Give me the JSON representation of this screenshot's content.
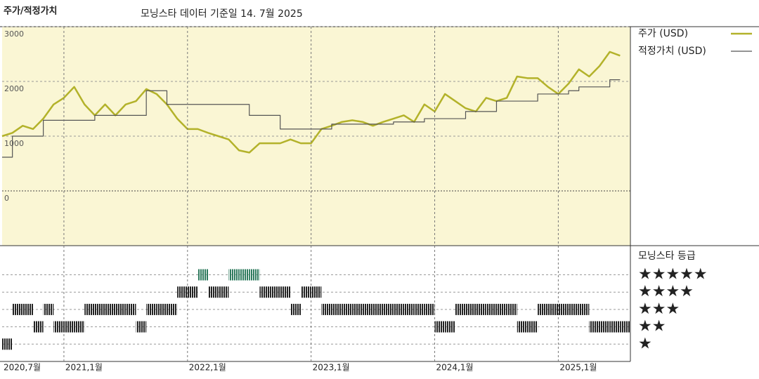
{
  "chart_data": [
    {
      "type": "line",
      "title": "주가/적정가치",
      "subtitle": "모닝스타 데이터 기준일 14. 7월 2025",
      "x": [
        "2020-07",
        "2020-08",
        "2020-09",
        "2020-10",
        "2020-11",
        "2020-12",
        "2021-01",
        "2021-02",
        "2021-03",
        "2021-04",
        "2021-05",
        "2021-06",
        "2021-07",
        "2021-08",
        "2021-09",
        "2021-10",
        "2021-11",
        "2021-12",
        "2022-01",
        "2022-02",
        "2022-03",
        "2022-04",
        "2022-05",
        "2022-06",
        "2022-07",
        "2022-08",
        "2022-09",
        "2022-10",
        "2022-11",
        "2022-12",
        "2023-01",
        "2023-02",
        "2023-03",
        "2023-04",
        "2023-05",
        "2023-06",
        "2023-07",
        "2023-08",
        "2023-09",
        "2023-10",
        "2023-11",
        "2023-12",
        "2024-01",
        "2024-02",
        "2024-03",
        "2024-04",
        "2024-05",
        "2024-06",
        "2024-07",
        "2024-08",
        "2024-09",
        "2024-10",
        "2024-11",
        "2024-12",
        "2025-01",
        "2025-02",
        "2025-03",
        "2025-04",
        "2025-05",
        "2025-06",
        "2025-07"
      ],
      "series": [
        {
          "name": "주가 (USD)",
          "color": "#b3b22a",
          "values": [
            1000,
            1060,
            1190,
            1130,
            1320,
            1580,
            1700,
            1900,
            1580,
            1380,
            1580,
            1380,
            1580,
            1640,
            1860,
            1770,
            1580,
            1320,
            1130,
            1130,
            1060,
            1000,
            940,
            740,
            700,
            870,
            870,
            870,
            940,
            870,
            870,
            1130,
            1190,
            1260,
            1290,
            1260,
            1190,
            1260,
            1320,
            1380,
            1260,
            1580,
            1450,
            1770,
            1640,
            1510,
            1450,
            1700,
            1640,
            1700,
            2090,
            2060,
            2060,
            1900,
            1770,
            1960,
            2220,
            2090,
            2280,
            2540,
            2470
          ]
        },
        {
          "name": "적정가치 (USD)",
          "color": "#555555",
          "step": true,
          "values": [
            615,
            1000,
            1000,
            1000,
            1290,
            1290,
            1290,
            1290,
            1290,
            1380,
            1380,
            1380,
            1380,
            1380,
            1830,
            1830,
            1580,
            1580,
            1580,
            1580,
            1580,
            1580,
            1580,
            1580,
            1380,
            1380,
            1380,
            1130,
            1130,
            1130,
            1130,
            1130,
            1220,
            1220,
            1220,
            1220,
            1220,
            1220,
            1260,
            1260,
            1260,
            1320,
            1320,
            1320,
            1320,
            1450,
            1450,
            1450,
            1640,
            1640,
            1640,
            1640,
            1770,
            1770,
            1770,
            1830,
            1900,
            1900,
            1900,
            2030,
            2030
          ]
        }
      ],
      "xlim": [
        "2020-07",
        "2025-08"
      ],
      "ylim": [
        -1000,
        3000
      ],
      "yticks": [
        0,
        1000,
        2000,
        3000
      ],
      "grid": true,
      "legend": "right"
    },
    {
      "type": "rating",
      "title": "모닝스타 등급",
      "x": [
        "2020-07",
        "2020-08",
        "2020-09",
        "2020-10",
        "2020-11",
        "2020-12",
        "2021-01",
        "2021-02",
        "2021-03",
        "2021-04",
        "2021-05",
        "2021-06",
        "2021-07",
        "2021-08",
        "2021-09",
        "2021-10",
        "2021-11",
        "2021-12",
        "2022-01",
        "2022-02",
        "2022-03",
        "2022-04",
        "2022-05",
        "2022-06",
        "2022-07",
        "2022-08",
        "2022-09",
        "2022-10",
        "2022-11",
        "2022-12",
        "2023-01",
        "2023-02",
        "2023-03",
        "2023-04",
        "2023-05",
        "2023-06",
        "2023-07",
        "2023-08",
        "2023-09",
        "2023-10",
        "2023-11",
        "2023-12",
        "2024-01",
        "2024-02",
        "2024-03",
        "2024-04",
        "2024-05",
        "2024-06",
        "2024-07",
        "2024-08",
        "2024-09",
        "2024-10",
        "2024-11",
        "2024-12",
        "2025-01",
        "2025-02",
        "2025-03",
        "2025-04",
        "2025-05",
        "2025-06",
        "2025-07"
      ],
      "values": [
        1,
        3,
        3,
        2,
        3,
        2,
        2,
        2,
        3,
        3,
        3,
        3,
        3,
        2,
        3,
        3,
        3,
        4,
        4,
        5,
        4,
        4,
        5,
        5,
        5,
        4,
        4,
        4,
        3,
        4,
        4,
        3,
        3,
        3,
        3,
        3,
        3,
        3,
        3,
        3,
        3,
        3,
        2,
        2,
        3,
        3,
        3,
        3,
        3,
        3,
        2,
        2,
        3,
        3,
        3,
        3,
        3,
        2,
        2,
        2,
        2
      ],
      "colors": [
        "#222222",
        "#222222",
        "#222222",
        "#222222",
        "#2e7b5e"
      ],
      "xlim": [
        "2020-07",
        "2025-08"
      ],
      "xticks": [
        {
          "value": "2020-07",
          "label": "2020,7월"
        },
        {
          "value": "2021-01",
          "label": "2021,1월"
        },
        {
          "value": "2022-01",
          "label": "2022,1월"
        },
        {
          "value": "2023-01",
          "label": "2023,1월"
        },
        {
          "value": "2024-01",
          "label": "2024,1월"
        },
        {
          "value": "2025-01",
          "label": "2025,1월"
        }
      ],
      "ylim": [
        0,
        6.6
      ],
      "yticks": [
        {
          "value": 1,
          "label": "★"
        },
        {
          "value": 2,
          "label": "★★"
        },
        {
          "value": 3,
          "label": "★★★"
        },
        {
          "value": 4,
          "label": "★★★★"
        },
        {
          "value": 5,
          "label": "★★★★★"
        }
      ],
      "grid": true
    }
  ]
}
